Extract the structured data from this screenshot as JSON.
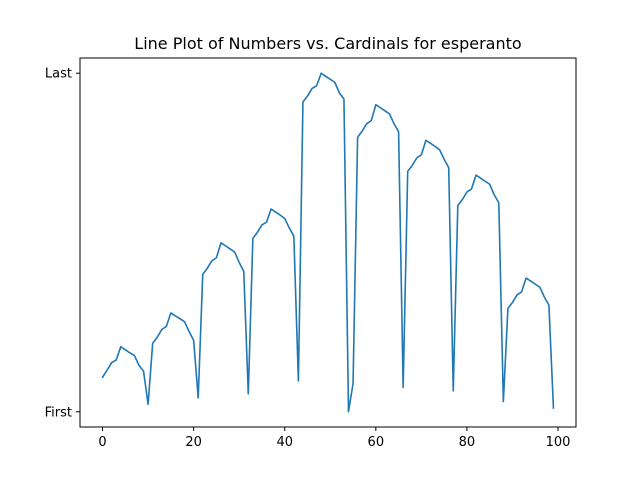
{
  "chart_data": {
    "type": "line",
    "title": "Line Plot of Numbers vs. Cardinals for esperanto",
    "xlabel": "",
    "ylabel": "",
    "xlim": [
      -4.95,
      103.95
    ],
    "ylim": [
      -0.045,
      1.045
    ],
    "x_ticks": [
      0,
      20,
      40,
      60,
      80,
      100
    ],
    "x_tick_labels": [
      "0",
      "20",
      "40",
      "60",
      "80",
      "100"
    ],
    "y_ticks": [
      0,
      1
    ],
    "y_tick_labels": [
      "First",
      "Last"
    ],
    "grid": false,
    "series": [
      {
        "color": "#1f77b4",
        "x": [
          0,
          1,
          2,
          3,
          4,
          5,
          6,
          7,
          8,
          9,
          10,
          11,
          12,
          13,
          14,
          15,
          16,
          17,
          18,
          19,
          20,
          21,
          22,
          23,
          24,
          25,
          26,
          27,
          28,
          29,
          30,
          31,
          32,
          33,
          34,
          35,
          36,
          37,
          38,
          39,
          40,
          41,
          42,
          43,
          44,
          45,
          46,
          47,
          48,
          49,
          50,
          51,
          52,
          53,
          54,
          55,
          56,
          57,
          58,
          59,
          60,
          61,
          62,
          63,
          64,
          65,
          66,
          67,
          68,
          69,
          70,
          71,
          72,
          73,
          74,
          75,
          76,
          77,
          78,
          79,
          80,
          81,
          82,
          83,
          84,
          85,
          86,
          87,
          88,
          89,
          90,
          91,
          92,
          93,
          94,
          95,
          96,
          97,
          98,
          99
        ],
        "y": [
          0.102,
          0.123,
          0.145,
          0.153,
          0.192,
          0.183,
          0.174,
          0.166,
          0.137,
          0.12,
          0.022,
          0.202,
          0.22,
          0.243,
          0.252,
          0.292,
          0.283,
          0.275,
          0.266,
          0.237,
          0.211,
          0.041,
          0.406,
          0.424,
          0.446,
          0.455,
          0.499,
          0.49,
          0.481,
          0.472,
          0.441,
          0.415,
          0.053,
          0.512,
          0.53,
          0.552,
          0.56,
          0.599,
          0.59,
          0.581,
          0.571,
          0.543,
          0.519,
          0.091,
          0.915,
          0.933,
          0.955,
          0.963,
          1.0,
          0.991,
          0.982,
          0.973,
          0.942,
          0.924,
          0.0,
          0.083,
          0.811,
          0.829,
          0.851,
          0.86,
          0.907,
          0.898,
          0.889,
          0.88,
          0.851,
          0.827,
          0.072,
          0.71,
          0.728,
          0.75,
          0.759,
          0.802,
          0.793,
          0.784,
          0.774,
          0.746,
          0.721,
          0.062,
          0.609,
          0.627,
          0.649,
          0.658,
          0.699,
          0.69,
          0.681,
          0.672,
          0.641,
          0.617,
          0.03,
          0.305,
          0.323,
          0.345,
          0.354,
          0.395,
          0.386,
          0.377,
          0.368,
          0.339,
          0.315,
          0.011
        ]
      }
    ]
  }
}
